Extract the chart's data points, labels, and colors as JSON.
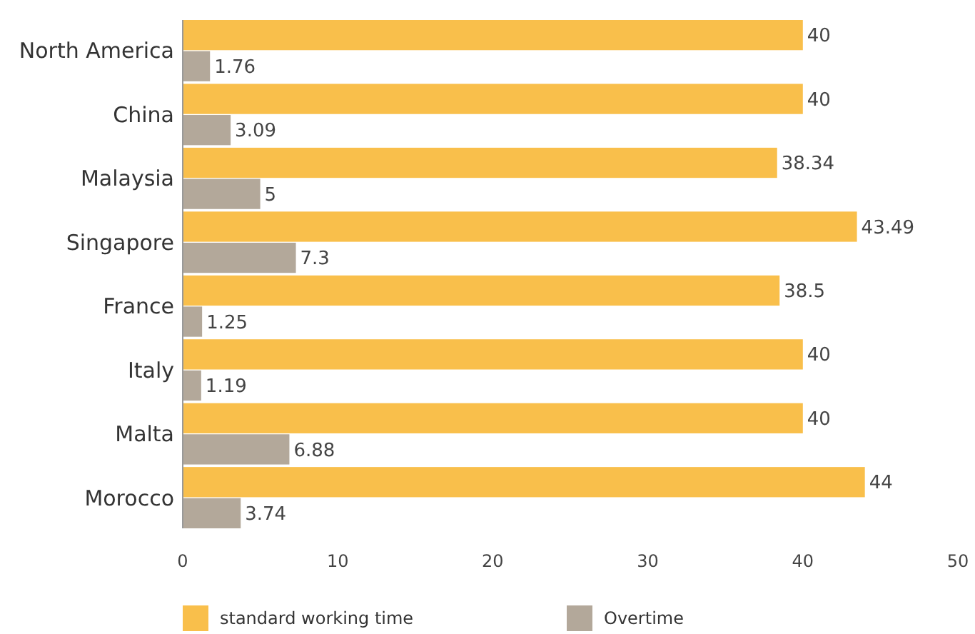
{
  "chart_data": {
    "type": "bar",
    "orientation": "horizontal",
    "categories": [
      "North America",
      "China",
      "Malaysia",
      "Singapore",
      "France",
      "Italy",
      "Malta",
      "Morocco"
    ],
    "series": [
      {
        "name": "standard working time",
        "color": "#f9bf4b",
        "values": [
          40,
          40,
          38.34,
          43.49,
          38.5,
          40,
          40,
          44
        ]
      },
      {
        "name": "Overtime",
        "color": "#b3a89a",
        "values": [
          1.76,
          3.09,
          5,
          7.3,
          1.25,
          1.19,
          6.88,
          3.74
        ]
      }
    ],
    "xlim": [
      0,
      50
    ],
    "xticks": [
      0,
      10,
      20,
      30,
      40,
      50
    ],
    "data_labels": true,
    "legend": "bottom",
    "grid": false
  }
}
